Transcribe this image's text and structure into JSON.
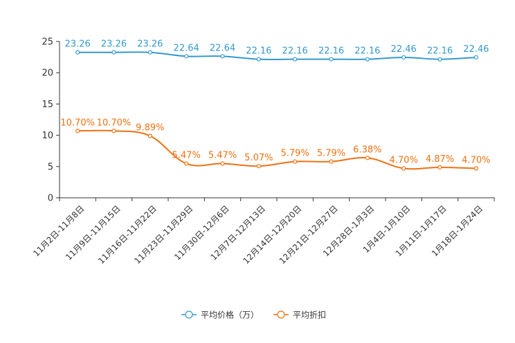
{
  "chart_data": {
    "type": "line",
    "title": "",
    "xlabel": "",
    "ylabel": "",
    "ylim": [
      0,
      25
    ],
    "yticks": [
      0,
      5,
      10,
      15,
      20,
      25
    ],
    "grid": false,
    "legend_position": "bottom-center",
    "categories": [
      "11月2日-11月8日",
      "11月9日-11月15日",
      "11月16日-11月22日",
      "11月23日-11月29日",
      "11月30日-12月6日",
      "12月7日-12月13日",
      "12月14日-12月20日",
      "12月21日-12月27日",
      "12月28日-1月3日",
      "1月4日-1月10日",
      "1月11日-1月17日",
      "1月18日-1月24日"
    ],
    "series": [
      {
        "name": "平均价格（万）",
        "color": "#3399cc",
        "values": [
          23.26,
          23.26,
          23.26,
          22.64,
          22.64,
          22.16,
          22.16,
          22.16,
          22.16,
          22.46,
          22.16,
          22.46
        ],
        "labels": [
          "23.26",
          "23.26",
          "23.26",
          "22.64",
          "22.64",
          "22.16",
          "22.16",
          "22.16",
          "22.16",
          "22.46",
          "22.16",
          "22.46"
        ]
      },
      {
        "name": "平均折扣",
        "color": "#f07010",
        "values": [
          10.7,
          10.7,
          9.89,
          5.47,
          5.47,
          5.07,
          5.79,
          5.79,
          6.38,
          4.7,
          4.87,
          4.7
        ],
        "labels": [
          "10.70%",
          "10.70%",
          "9.89%",
          "5.47%",
          "5.47%",
          "5.07%",
          "5.79%",
          "5.79%",
          "6.38%",
          "4.70%",
          "4.87%",
          "4.70%"
        ]
      }
    ]
  }
}
